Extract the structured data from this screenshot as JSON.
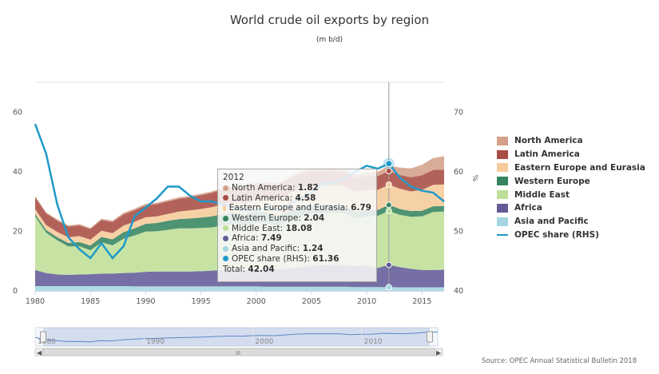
{
  "header": {
    "title": "World crude oil exports by region",
    "subtitle": "(m b/d)"
  },
  "source": "Source: OPEC Annual Statistical Bulletin 2018",
  "chart_data": {
    "type": "area",
    "stacked": true,
    "x": [
      1980,
      1981,
      1982,
      1983,
      1984,
      1985,
      1986,
      1987,
      1988,
      1989,
      1990,
      1991,
      1992,
      1993,
      1994,
      1995,
      1996,
      1997,
      1998,
      1999,
      2000,
      2001,
      2002,
      2003,
      2004,
      2005,
      2006,
      2007,
      2008,
      2009,
      2010,
      2011,
      2012,
      2013,
      2014,
      2015,
      2016,
      2017
    ],
    "xticks": [
      1980,
      1985,
      1990,
      1995,
      2000,
      2005,
      2010,
      2015
    ],
    "y_left": {
      "range": [
        0,
        70
      ],
      "ticks": [
        0,
        20,
        40,
        60
      ]
    },
    "y_right": {
      "label": "%",
      "range": [
        40,
        75
      ],
      "ticks": [
        40,
        50,
        60,
        70
      ]
    },
    "series": [
      {
        "name": "Asia and Pacific",
        "color": "#a3d6e0",
        "values": [
          1.6,
          1.6,
          1.6,
          1.6,
          1.6,
          1.6,
          1.6,
          1.6,
          1.6,
          1.5,
          1.5,
          1.5,
          1.5,
          1.5,
          1.5,
          1.5,
          1.5,
          1.5,
          1.5,
          1.5,
          1.5,
          1.4,
          1.4,
          1.4,
          1.4,
          1.4,
          1.4,
          1.4,
          1.4,
          1.3,
          1.3,
          1.3,
          1.24,
          1.2,
          1.2,
          1.2,
          1.2,
          1.2
        ]
      },
      {
        "name": "Africa",
        "color": "#625b98",
        "values": [
          5.4,
          4.4,
          3.9,
          3.8,
          3.9,
          4.0,
          4.2,
          4.2,
          4.4,
          4.6,
          4.9,
          5.0,
          5.0,
          5.0,
          5.0,
          5.1,
          5.3,
          5.5,
          5.5,
          5.4,
          5.6,
          5.8,
          5.8,
          6.2,
          6.6,
          7.0,
          7.2,
          7.3,
          7.2,
          7.0,
          7.2,
          6.4,
          7.49,
          6.8,
          6.2,
          5.8,
          5.8,
          5.9
        ]
      },
      {
        "name": "Middle East",
        "color": "#bedf97",
        "values": [
          18.0,
          13.5,
          11.5,
          9.5,
          9.5,
          8.0,
          10.5,
          9.5,
          11.5,
          12.5,
          13.5,
          13.5,
          14.0,
          14.5,
          14.5,
          14.5,
          14.5,
          15.0,
          15.5,
          15.0,
          15.8,
          15.5,
          14.5,
          16.0,
          17.0,
          17.5,
          17.5,
          17.5,
          17.5,
          16.0,
          16.5,
          17.5,
          18.08,
          17.5,
          17.5,
          18.0,
          19.5,
          19.5
        ]
      },
      {
        "name": "Western Europe",
        "color": "#35845e",
        "values": [
          0.8,
          0.9,
          1.0,
          1.2,
          1.4,
          1.6,
          1.8,
          2.0,
          2.2,
          2.4,
          2.6,
          2.8,
          3.0,
          3.1,
          3.3,
          3.5,
          3.7,
          3.8,
          3.8,
          3.8,
          3.7,
          3.6,
          3.5,
          3.3,
          3.1,
          2.9,
          2.7,
          2.5,
          2.3,
          2.2,
          2.1,
          2.0,
          2.04,
          2.0,
          1.9,
          1.9,
          1.9,
          1.9
        ]
      },
      {
        "name": "Eastern Europe and Eurasia",
        "color": "#f5cb9a",
        "values": [
          1.6,
          1.7,
          1.8,
          1.9,
          2.0,
          2.0,
          2.1,
          2.1,
          2.2,
          2.2,
          2.2,
          2.2,
          2.3,
          2.5,
          2.7,
          2.9,
          3.1,
          3.3,
          3.5,
          3.7,
          4.1,
          4.7,
          5.3,
          5.8,
          6.3,
          6.5,
          6.6,
          6.8,
          6.7,
          6.8,
          6.8,
          6.7,
          6.79,
          6.8,
          6.6,
          7.0,
          7.2,
          7.2
        ]
      },
      {
        "name": "Latin America",
        "color": "#a94c43",
        "values": [
          4.0,
          3.9,
          3.8,
          3.6,
          3.6,
          3.5,
          3.6,
          3.7,
          3.8,
          3.9,
          4.0,
          4.1,
          4.2,
          4.3,
          4.4,
          4.6,
          4.8,
          5.0,
          5.1,
          5.1,
          5.1,
          5.1,
          5.0,
          5.0,
          5.0,
          5.0,
          4.9,
          4.8,
          4.7,
          4.6,
          4.6,
          4.6,
          4.58,
          4.6,
          4.7,
          4.9,
          5.0,
          5.0
        ]
      },
      {
        "name": "North America",
        "color": "#d4a089",
        "values": [
          0.4,
          0.4,
          0.4,
          0.4,
          0.4,
          0.4,
          0.4,
          0.5,
          0.5,
          0.5,
          0.5,
          0.5,
          0.5,
          0.5,
          0.5,
          0.5,
          0.5,
          0.5,
          0.5,
          0.5,
          0.5,
          0.6,
          0.6,
          0.6,
          0.6,
          0.7,
          0.7,
          0.8,
          0.9,
          1.0,
          1.2,
          1.5,
          1.82,
          2.5,
          3.0,
          3.5,
          4.0,
          4.5
        ]
      }
    ],
    "line_series": {
      "name": "OPEC share (RHS)",
      "color": "#1f9ac9",
      "axis": "right",
      "values": [
        68.0,
        63.0,
        54.5,
        49.0,
        47.0,
        45.5,
        48.0,
        45.5,
        47.5,
        52.5,
        54.0,
        55.5,
        57.5,
        57.5,
        56.0,
        55.0,
        55.0,
        54.5,
        54.0,
        53.5,
        53.5,
        54.0,
        53.5,
        54.5,
        55.5,
        56.5,
        58.0,
        58.0,
        59.0,
        60.0,
        61.0,
        60.5,
        61.36,
        59.0,
        57.5,
        56.8,
        56.5,
        55.0
      ]
    },
    "crosshair_year": 2012,
    "tooltip": {
      "header": "2012",
      "rows": [
        {
          "label": "North America: ",
          "value": "1.82",
          "color": "#d4a089"
        },
        {
          "label": "Latin America: ",
          "value": "4.58",
          "color": "#a94c43"
        },
        {
          "label": "Eastern Europe and Eurasia: ",
          "value": "6.79",
          "color": "#f5cb9a"
        },
        {
          "label": "Western Europe: ",
          "value": "2.04",
          "color": "#35845e"
        },
        {
          "label": "Middle East: ",
          "value": "18.08",
          "color": "#bedf97"
        },
        {
          "label": "Africa: ",
          "value": "7.49",
          "color": "#625b98"
        },
        {
          "label": "Asia and Pacific: ",
          "value": "1.24",
          "color": "#a3d6e0"
        },
        {
          "label": "OPEC share (RHS): ",
          "value": "61.36",
          "color": "#1f9ac9"
        }
      ],
      "total_label": "Total: ",
      "total_value": "42.04"
    },
    "navigator": {
      "ticks": [
        1980,
        1990,
        2000,
        2010
      ],
      "scroll_grip": "III"
    }
  }
}
